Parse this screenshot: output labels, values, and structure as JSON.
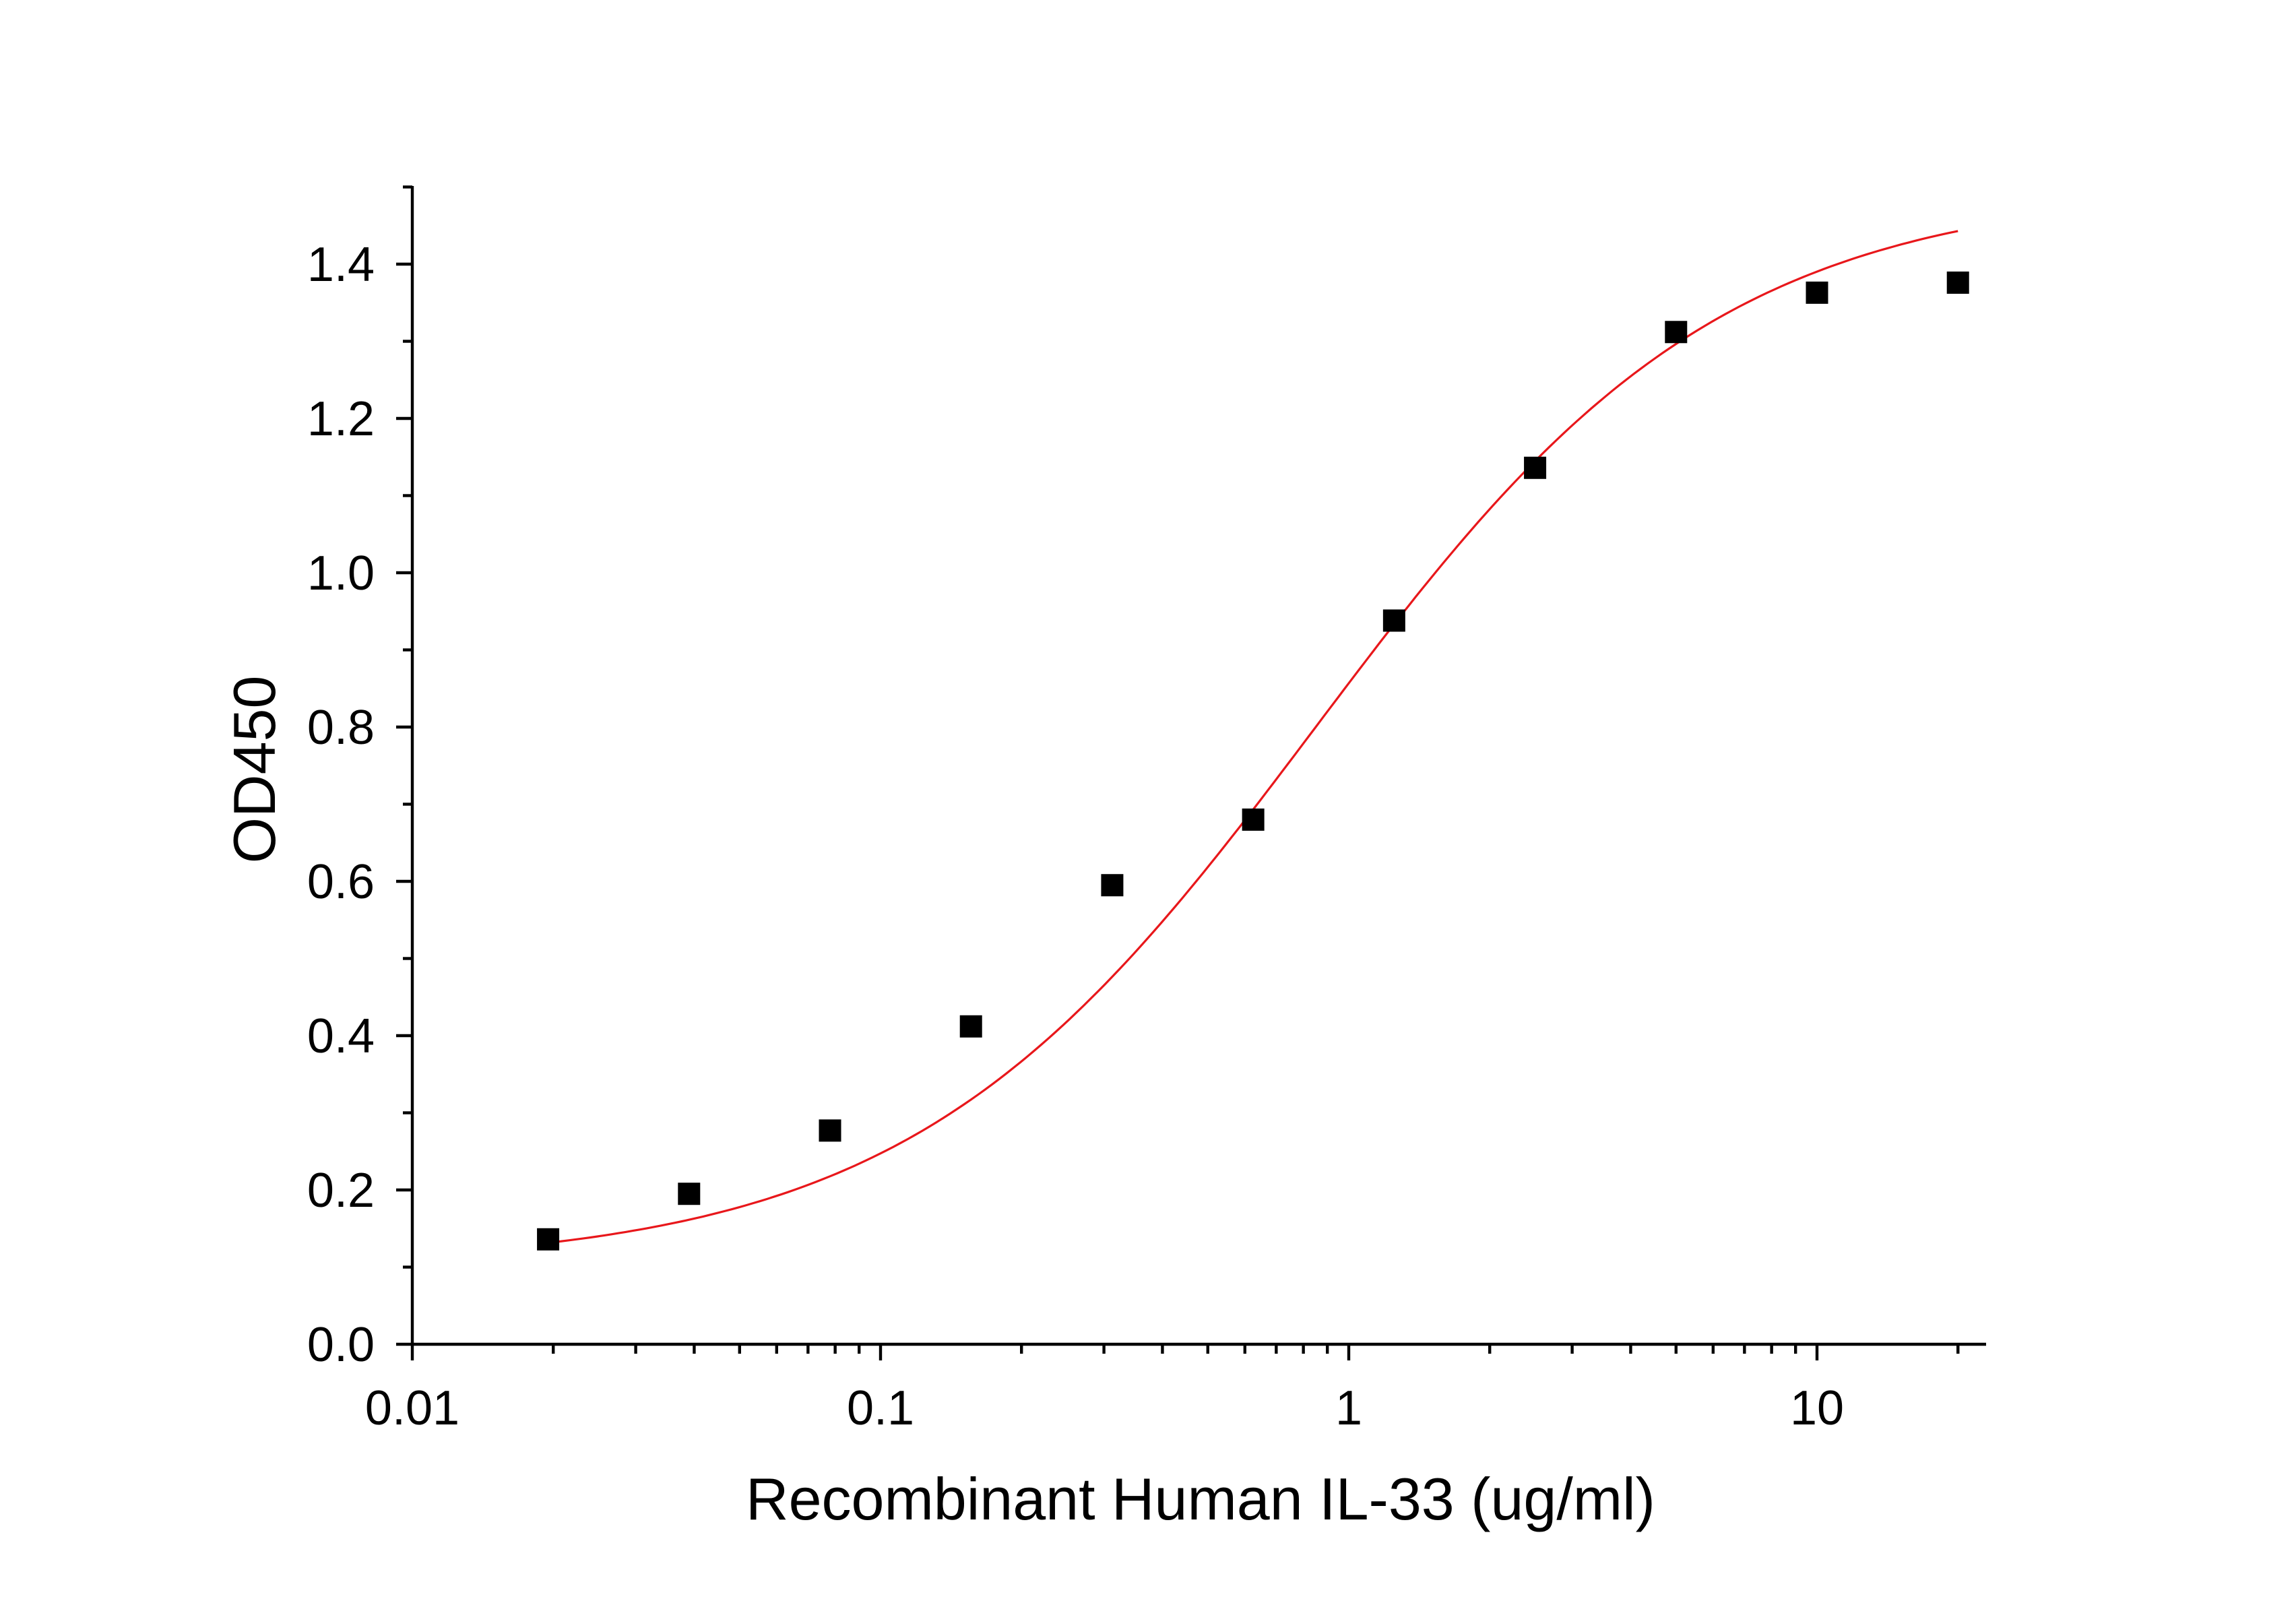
{
  "chart_data": {
    "type": "scatter",
    "title": "",
    "xlabel": "Recombinant Human IL-33 (ug/ml)",
    "ylabel": "OD450",
    "x_scale": "log",
    "xlim": [
      0.01,
      22
    ],
    "ylim": [
      0,
      1.5
    ],
    "x_ticks": [
      0.01,
      0.1,
      1,
      10
    ],
    "x_tick_labels": [
      "0.01",
      "0.1",
      "1",
      "10"
    ],
    "y_ticks": [
      0.0,
      0.2,
      0.4,
      0.6,
      0.8,
      1.0,
      1.2,
      1.4
    ],
    "y_tick_labels": [
      "0.0",
      "0.2",
      "0.4",
      "0.6",
      "0.8",
      "1.0",
      "1.2",
      "1.4"
    ],
    "grid": false,
    "legend": "none",
    "series": [
      {
        "marker": "square",
        "color": "#000000",
        "x": [
          0.0195,
          0.039,
          0.078,
          0.156,
          0.3125,
          0.625,
          1.25,
          2.5,
          5,
          10,
          20
        ],
        "y": [
          0.136,
          0.195,
          0.277,
          0.412,
          0.595,
          0.68,
          0.938,
          1.136,
          1.312,
          1.363,
          1.376
        ]
      }
    ],
    "fit": {
      "model": "4PL",
      "color": "#e8171b",
      "bottom": 0.1,
      "top": 1.5,
      "ec50": 0.85,
      "hill": 1.0,
      "x_range": [
        0.0195,
        20
      ]
    }
  }
}
